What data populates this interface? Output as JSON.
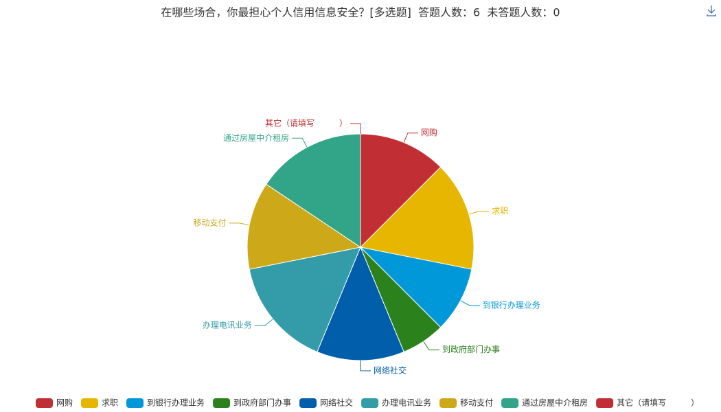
{
  "chart_data": {
    "type": "pie",
    "title": "在哪些场合，你最担心个人信用信息安全？[多选题]  答题人数：6  未答题人数：0",
    "categories": [
      "网购",
      "求职",
      "到银行办理业务",
      "到政府部门办事",
      "网络社交",
      "办理电讯业务",
      "移动支付",
      "通过房屋中介租房",
      "其它（请填写　　　）"
    ],
    "values": [
      4,
      5,
      3,
      2,
      4,
      5,
      4,
      5,
      0
    ],
    "colors": [
      "#c12e34",
      "#e6b600",
      "#0098d9",
      "#2b821d",
      "#005eaa",
      "#339ca8",
      "#cda819",
      "#32a487",
      "#c12e34"
    ],
    "legend": "bottom"
  }
}
